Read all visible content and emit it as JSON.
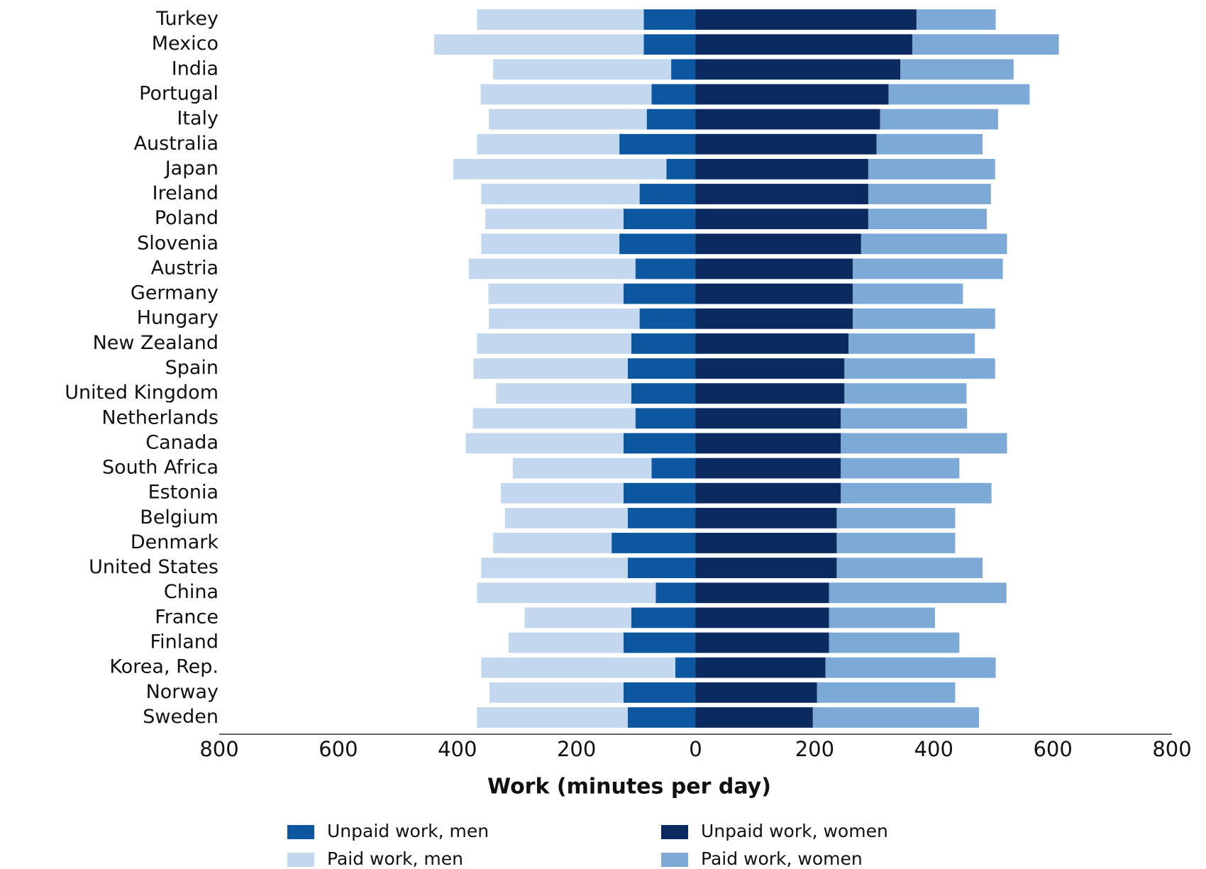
{
  "chart_data": {
    "type": "diverging_stacked_barh",
    "xlabel": "Work (minutes per day)",
    "categories": [
      "Turkey",
      "Mexico",
      "India",
      "Portugal",
      "Italy",
      "Australia",
      "Japan",
      "Ireland",
      "Poland",
      "Slovenia",
      "Austria",
      "Germany",
      "Hungary",
      "New Zealand",
      "Spain",
      "United Kingdom",
      "Netherlands",
      "Canada",
      "South Africa",
      "Estonia",
      "Belgium",
      "Denmark",
      "United States",
      "China",
      "France",
      "Finland",
      "Korea, Rep.",
      "Norway",
      "Sweden"
    ],
    "series": [
      {
        "name": "Unpaid work, men",
        "color": "#0d57a0",
        "values": [
          -87,
          -87,
          -41,
          -74,
          -82,
          -128,
          -49,
          -94,
          -121,
          -128,
          -101,
          -121,
          -94,
          -108,
          -114,
          -108,
          -101,
          -121,
          -74,
          -121,
          -114,
          -141,
          -114,
          -67,
          -108,
          -121,
          -34,
          -121,
          -114
        ]
      },
      {
        "name": "Unpaid work, women",
        "color": "#0b2a5f",
        "values": [
          371,
          364,
          344,
          324,
          310,
          304,
          290,
          290,
          290,
          278,
          264,
          264,
          264,
          257,
          250,
          250,
          244,
          244,
          244,
          244,
          237,
          237,
          237,
          224,
          224,
          224,
          218,
          204,
          197
        ]
      },
      {
        "name": "Paid work, men",
        "color": "#c3d7ee",
        "values": [
          -280,
          -352,
          -299,
          -287,
          -265,
          -239,
          -358,
          -266,
          -232,
          -232,
          -280,
          -227,
          -253,
          -259,
          -259,
          -227,
          -273,
          -265,
          -233,
          -206,
          -206,
          -199,
          -246,
          -300,
          -179,
          -193,
          -326,
          -225,
          -253
        ]
      },
      {
        "name": "Paid work, women",
        "color": "#7da9d6",
        "values": [
          133,
          246,
          190,
          237,
          198,
          178,
          213,
          206,
          199,
          245,
          252,
          185,
          239,
          212,
          253,
          205,
          212,
          279,
          199,
          253,
          199,
          199,
          245,
          298,
          178,
          219,
          286,
          232,
          279
        ]
      }
    ],
    "xlim": [
      -800,
      800
    ],
    "xticks": [
      {
        "value": -800,
        "label": "800"
      },
      {
        "value": -600,
        "label": "600"
      },
      {
        "value": -400,
        "label": "400"
      },
      {
        "value": -200,
        "label": "200"
      },
      0,
      200,
      400,
      600,
      800
    ]
  }
}
